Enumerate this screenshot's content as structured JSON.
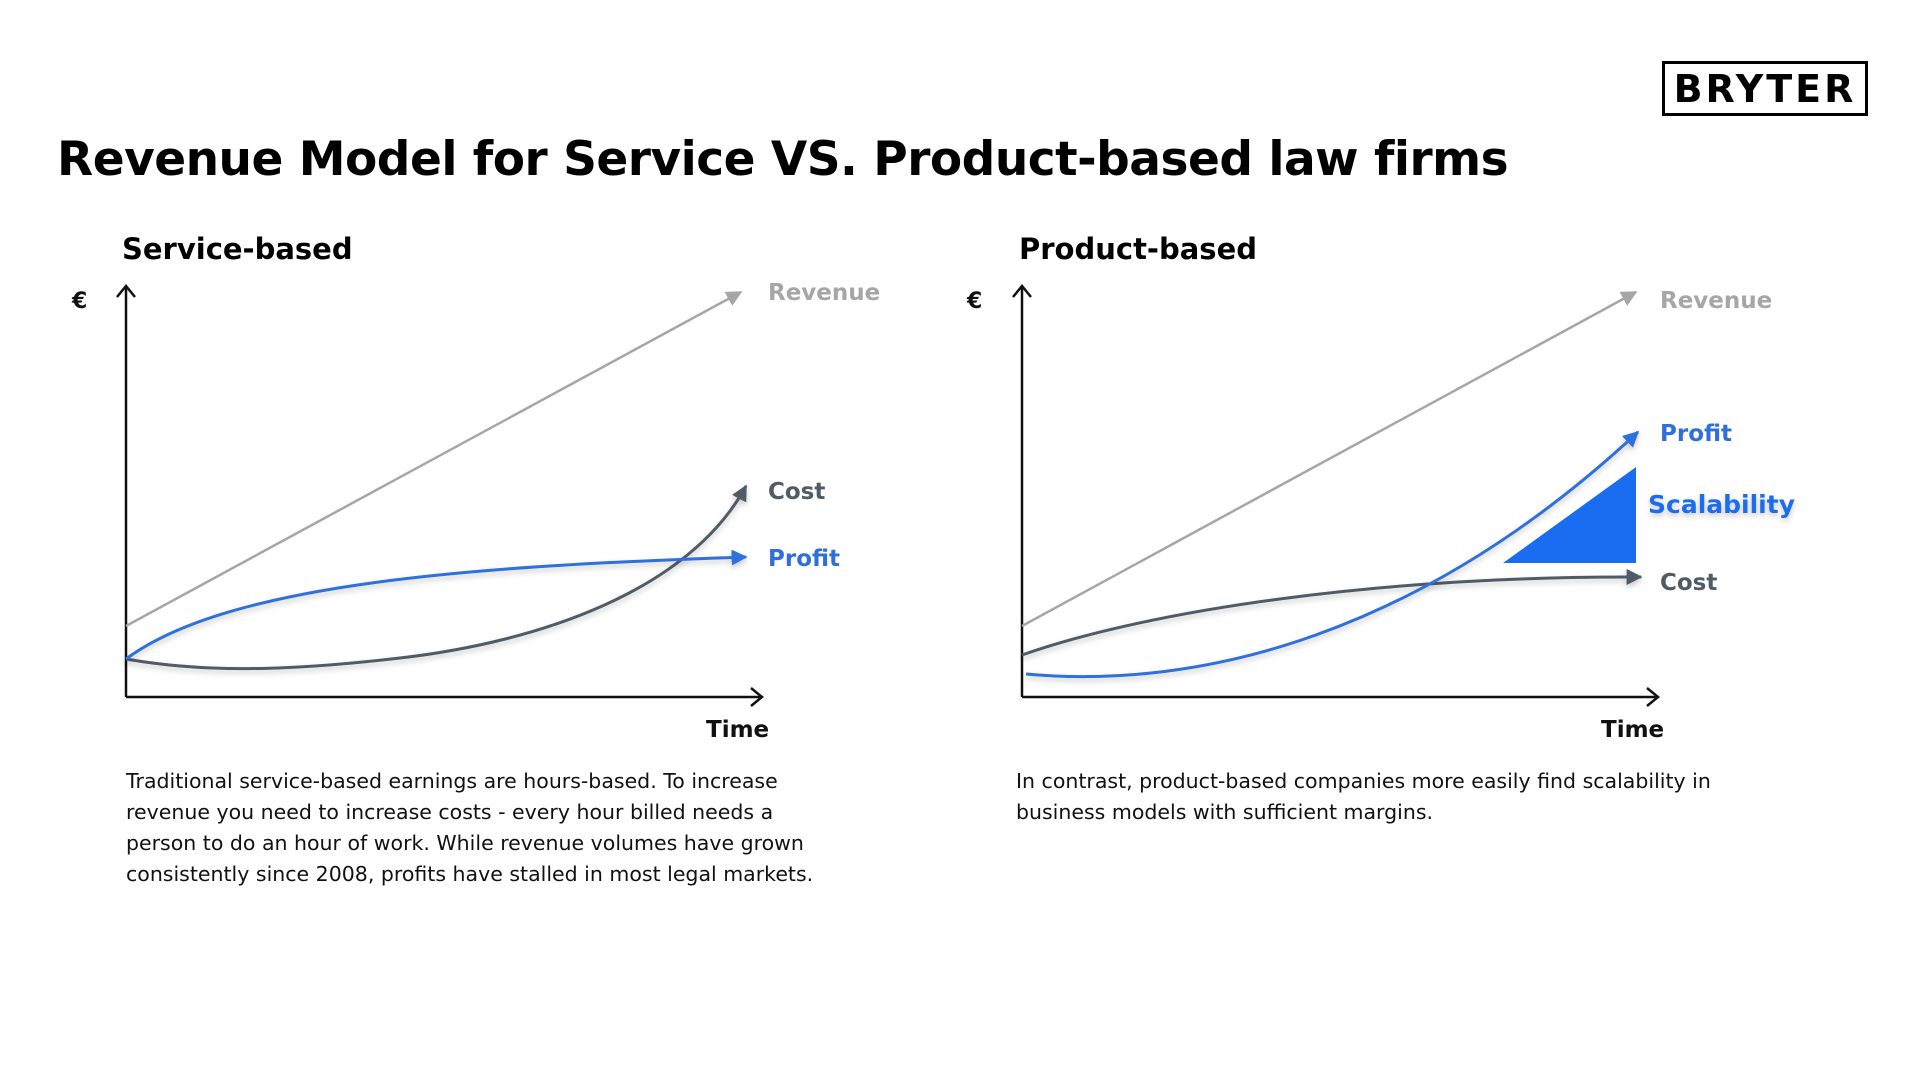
{
  "logo": {
    "text": "BRYTER"
  },
  "title": "Revenue Model for Service VS. Product-based law firms",
  "colors": {
    "revenue": "#a6a6a6",
    "cost": "#4f5b67",
    "profit": "#2f6fdc",
    "scalability": "#1a6cf0",
    "axis": "#111111"
  },
  "panels": {
    "service": {
      "title": "Service-based",
      "y_label": "€",
      "x_label": "Time",
      "revenue_label": "Revenue",
      "cost_label": "Cost",
      "profit_label": "Profit",
      "description": "Traditional service-based earnings are hours-based. To increase revenue you need to increase costs - every hour billed needs a person to do an hour of work. While revenue volumes have grown consistently since 2008, profits have stalled in most legal markets."
    },
    "product": {
      "title": "Product-based",
      "y_label": "€",
      "x_label": "Time",
      "revenue_label": "Revenue",
      "profit_label": "Profit",
      "scalability_label": "Scalability",
      "cost_label": "Cost",
      "description": "In contrast, product-based companies more easily find scalability in business models with sufficient margins."
    }
  }
}
